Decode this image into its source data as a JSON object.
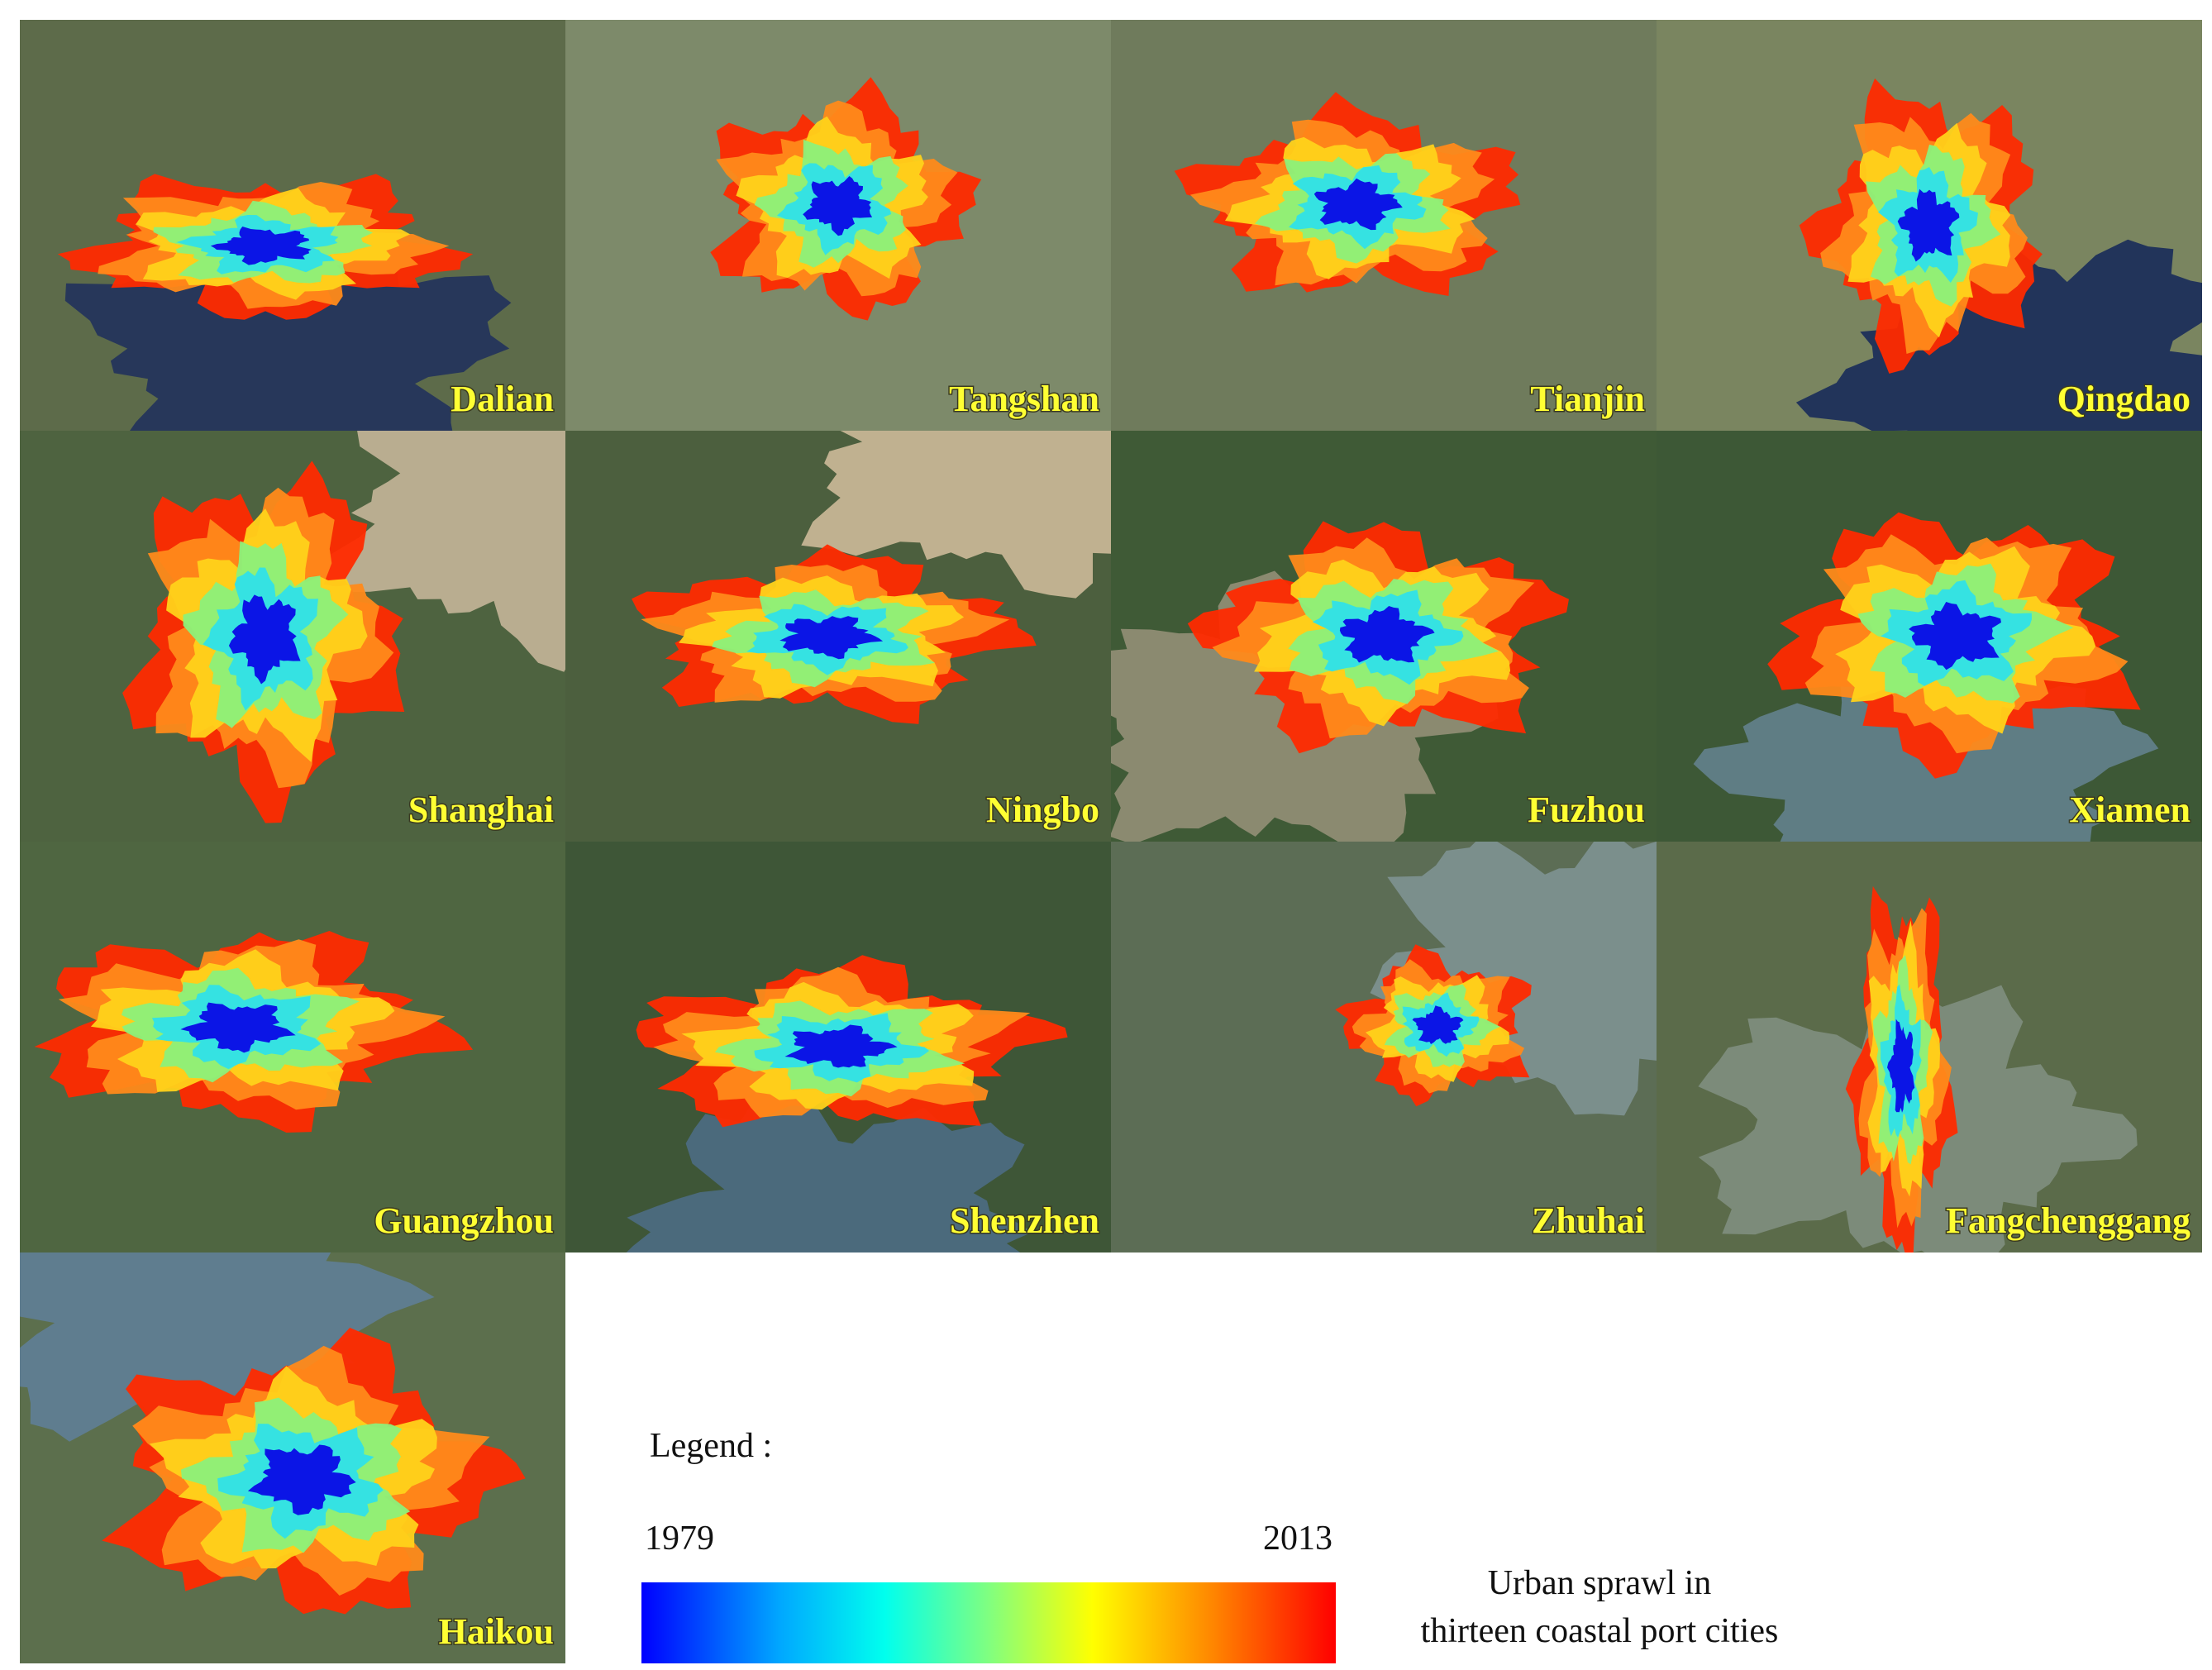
{
  "panels": [
    {
      "city": "Dalian"
    },
    {
      "city": "Tangshan"
    },
    {
      "city": "Tianjin"
    },
    {
      "city": "Qingdao"
    },
    {
      "city": "Shanghai"
    },
    {
      "city": "Ningbo"
    },
    {
      "city": "Fuzhou"
    },
    {
      "city": "Xiamen"
    },
    {
      "city": "Guangzhou"
    },
    {
      "city": "Shenzhen"
    },
    {
      "city": "Zhuhai"
    },
    {
      "city": "Fangchenggang"
    },
    {
      "city": "Haikou"
    }
  ],
  "legend": {
    "title": "Legend :",
    "start": 1979,
    "end": 2013,
    "caption": [
      "Urban sprawl in",
      "thirteen coastal port cities"
    ]
  }
}
